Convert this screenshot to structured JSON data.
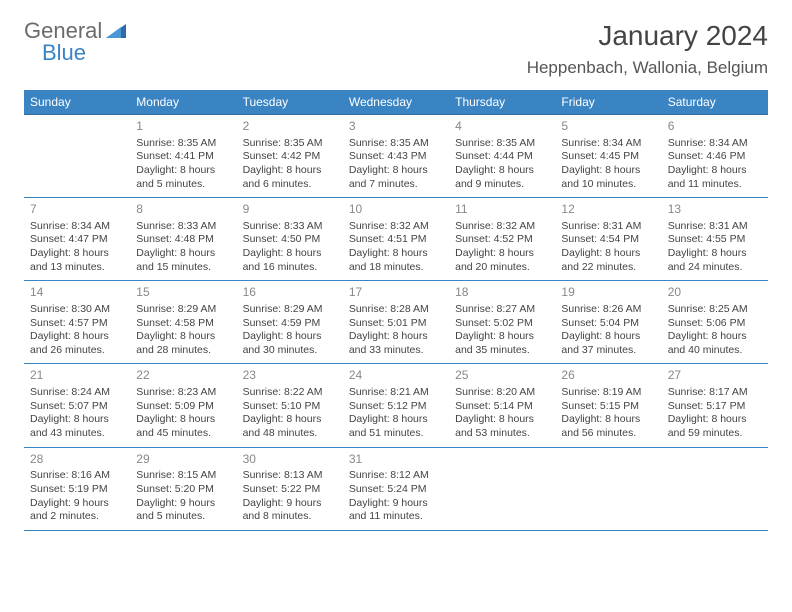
{
  "logo": {
    "line1": "General",
    "line2": "Blue"
  },
  "title": "January 2024",
  "location": "Heppenbach, Wallonia, Belgium",
  "colors": {
    "header_bg": "#3a84c4",
    "header_text": "#ffffff",
    "body_text": "#444444",
    "daynum_text": "#888888",
    "row_border": "#3a84c4",
    "logo_gray": "#6b6b6b",
    "logo_blue": "#3a84c4",
    "background": "#ffffff"
  },
  "dayheaders": [
    "Sunday",
    "Monday",
    "Tuesday",
    "Wednesday",
    "Thursday",
    "Friday",
    "Saturday"
  ],
  "weeks": [
    [
      {
        "empty": true
      },
      {
        "num": "1",
        "sunrise": "Sunrise: 8:35 AM",
        "sunset": "Sunset: 4:41 PM",
        "day1": "Daylight: 8 hours",
        "day2": "and 5 minutes."
      },
      {
        "num": "2",
        "sunrise": "Sunrise: 8:35 AM",
        "sunset": "Sunset: 4:42 PM",
        "day1": "Daylight: 8 hours",
        "day2": "and 6 minutes."
      },
      {
        "num": "3",
        "sunrise": "Sunrise: 8:35 AM",
        "sunset": "Sunset: 4:43 PM",
        "day1": "Daylight: 8 hours",
        "day2": "and 7 minutes."
      },
      {
        "num": "4",
        "sunrise": "Sunrise: 8:35 AM",
        "sunset": "Sunset: 4:44 PM",
        "day1": "Daylight: 8 hours",
        "day2": "and 9 minutes."
      },
      {
        "num": "5",
        "sunrise": "Sunrise: 8:34 AM",
        "sunset": "Sunset: 4:45 PM",
        "day1": "Daylight: 8 hours",
        "day2": "and 10 minutes."
      },
      {
        "num": "6",
        "sunrise": "Sunrise: 8:34 AM",
        "sunset": "Sunset: 4:46 PM",
        "day1": "Daylight: 8 hours",
        "day2": "and 11 minutes."
      }
    ],
    [
      {
        "num": "7",
        "sunrise": "Sunrise: 8:34 AM",
        "sunset": "Sunset: 4:47 PM",
        "day1": "Daylight: 8 hours",
        "day2": "and 13 minutes."
      },
      {
        "num": "8",
        "sunrise": "Sunrise: 8:33 AM",
        "sunset": "Sunset: 4:48 PM",
        "day1": "Daylight: 8 hours",
        "day2": "and 15 minutes."
      },
      {
        "num": "9",
        "sunrise": "Sunrise: 8:33 AM",
        "sunset": "Sunset: 4:50 PM",
        "day1": "Daylight: 8 hours",
        "day2": "and 16 minutes."
      },
      {
        "num": "10",
        "sunrise": "Sunrise: 8:32 AM",
        "sunset": "Sunset: 4:51 PM",
        "day1": "Daylight: 8 hours",
        "day2": "and 18 minutes."
      },
      {
        "num": "11",
        "sunrise": "Sunrise: 8:32 AM",
        "sunset": "Sunset: 4:52 PM",
        "day1": "Daylight: 8 hours",
        "day2": "and 20 minutes."
      },
      {
        "num": "12",
        "sunrise": "Sunrise: 8:31 AM",
        "sunset": "Sunset: 4:54 PM",
        "day1": "Daylight: 8 hours",
        "day2": "and 22 minutes."
      },
      {
        "num": "13",
        "sunrise": "Sunrise: 8:31 AM",
        "sunset": "Sunset: 4:55 PM",
        "day1": "Daylight: 8 hours",
        "day2": "and 24 minutes."
      }
    ],
    [
      {
        "num": "14",
        "sunrise": "Sunrise: 8:30 AM",
        "sunset": "Sunset: 4:57 PM",
        "day1": "Daylight: 8 hours",
        "day2": "and 26 minutes."
      },
      {
        "num": "15",
        "sunrise": "Sunrise: 8:29 AM",
        "sunset": "Sunset: 4:58 PM",
        "day1": "Daylight: 8 hours",
        "day2": "and 28 minutes."
      },
      {
        "num": "16",
        "sunrise": "Sunrise: 8:29 AM",
        "sunset": "Sunset: 4:59 PM",
        "day1": "Daylight: 8 hours",
        "day2": "and 30 minutes."
      },
      {
        "num": "17",
        "sunrise": "Sunrise: 8:28 AM",
        "sunset": "Sunset: 5:01 PM",
        "day1": "Daylight: 8 hours",
        "day2": "and 33 minutes."
      },
      {
        "num": "18",
        "sunrise": "Sunrise: 8:27 AM",
        "sunset": "Sunset: 5:02 PM",
        "day1": "Daylight: 8 hours",
        "day2": "and 35 minutes."
      },
      {
        "num": "19",
        "sunrise": "Sunrise: 8:26 AM",
        "sunset": "Sunset: 5:04 PM",
        "day1": "Daylight: 8 hours",
        "day2": "and 37 minutes."
      },
      {
        "num": "20",
        "sunrise": "Sunrise: 8:25 AM",
        "sunset": "Sunset: 5:06 PM",
        "day1": "Daylight: 8 hours",
        "day2": "and 40 minutes."
      }
    ],
    [
      {
        "num": "21",
        "sunrise": "Sunrise: 8:24 AM",
        "sunset": "Sunset: 5:07 PM",
        "day1": "Daylight: 8 hours",
        "day2": "and 43 minutes."
      },
      {
        "num": "22",
        "sunrise": "Sunrise: 8:23 AM",
        "sunset": "Sunset: 5:09 PM",
        "day1": "Daylight: 8 hours",
        "day2": "and 45 minutes."
      },
      {
        "num": "23",
        "sunrise": "Sunrise: 8:22 AM",
        "sunset": "Sunset: 5:10 PM",
        "day1": "Daylight: 8 hours",
        "day2": "and 48 minutes."
      },
      {
        "num": "24",
        "sunrise": "Sunrise: 8:21 AM",
        "sunset": "Sunset: 5:12 PM",
        "day1": "Daylight: 8 hours",
        "day2": "and 51 minutes."
      },
      {
        "num": "25",
        "sunrise": "Sunrise: 8:20 AM",
        "sunset": "Sunset: 5:14 PM",
        "day1": "Daylight: 8 hours",
        "day2": "and 53 minutes."
      },
      {
        "num": "26",
        "sunrise": "Sunrise: 8:19 AM",
        "sunset": "Sunset: 5:15 PM",
        "day1": "Daylight: 8 hours",
        "day2": "and 56 minutes."
      },
      {
        "num": "27",
        "sunrise": "Sunrise: 8:17 AM",
        "sunset": "Sunset: 5:17 PM",
        "day1": "Daylight: 8 hours",
        "day2": "and 59 minutes."
      }
    ],
    [
      {
        "num": "28",
        "sunrise": "Sunrise: 8:16 AM",
        "sunset": "Sunset: 5:19 PM",
        "day1": "Daylight: 9 hours",
        "day2": "and 2 minutes."
      },
      {
        "num": "29",
        "sunrise": "Sunrise: 8:15 AM",
        "sunset": "Sunset: 5:20 PM",
        "day1": "Daylight: 9 hours",
        "day2": "and 5 minutes."
      },
      {
        "num": "30",
        "sunrise": "Sunrise: 8:13 AM",
        "sunset": "Sunset: 5:22 PM",
        "day1": "Daylight: 9 hours",
        "day2": "and 8 minutes."
      },
      {
        "num": "31",
        "sunrise": "Sunrise: 8:12 AM",
        "sunset": "Sunset: 5:24 PM",
        "day1": "Daylight: 9 hours",
        "day2": "and 11 minutes."
      },
      {
        "empty": true
      },
      {
        "empty": true
      },
      {
        "empty": true
      }
    ]
  ]
}
